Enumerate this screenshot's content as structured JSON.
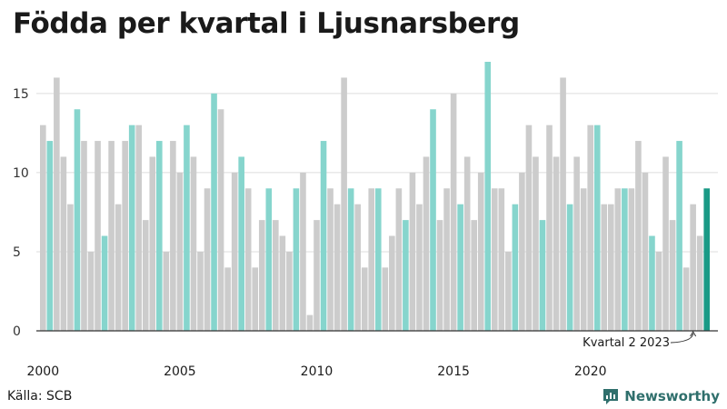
{
  "title": "Födda per kvartal i Ljusnarsberg",
  "source": "Källa: SCB",
  "brand": {
    "name": "Newsworthy",
    "icon": "newsworthy-logo-icon"
  },
  "colors": {
    "regular": "#cccccc",
    "q2": "#86d5cd",
    "latest": "#1a9a86",
    "grid": "#dddddd",
    "axis": "#333333"
  },
  "chart_data": {
    "type": "bar",
    "title": "Födda per kvartal i Ljusnarsberg",
    "xlabel": "",
    "ylabel": "",
    "ylim": [
      0,
      17
    ],
    "yticks": [
      0,
      5,
      10,
      15
    ],
    "xtick_labels": [
      "2000",
      "2005",
      "2010",
      "2015",
      "2020"
    ],
    "grid": true,
    "start": {
      "year": 2000,
      "quarter": 1
    },
    "annotation": "Kvartal 2 2023",
    "values": [
      13,
      12,
      16,
      11,
      8,
      14,
      12,
      5,
      12,
      6,
      12,
      8,
      12,
      13,
      13,
      7,
      11,
      12,
      5,
      12,
      10,
      13,
      11,
      5,
      9,
      15,
      14,
      4,
      10,
      11,
      9,
      4,
      7,
      9,
      7,
      6,
      5,
      9,
      10,
      1,
      7,
      12,
      9,
      8,
      16,
      9,
      8,
      4,
      9,
      9,
      4,
      6,
      9,
      7,
      10,
      8,
      11,
      14,
      7,
      9,
      15,
      8,
      11,
      7,
      10,
      17,
      9,
      9,
      5,
      8,
      10,
      13,
      11,
      7,
      13,
      11,
      16,
      8,
      11,
      9,
      13,
      13,
      8,
      8,
      9,
      9,
      9,
      12,
      10,
      6,
      5,
      11,
      7,
      12,
      4,
      8,
      6,
      9
    ]
  }
}
